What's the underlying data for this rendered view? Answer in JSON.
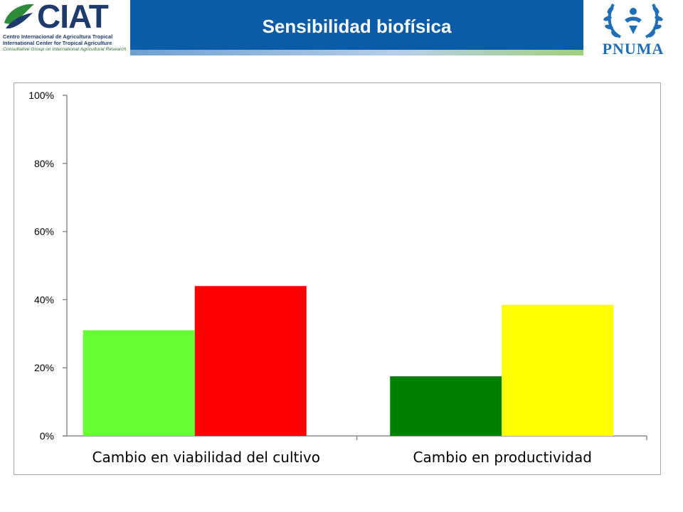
{
  "header": {
    "title": "Sensibilidad biofísica",
    "ciat": {
      "wordmark": "CIAT",
      "line1": "Centro Internacional de Agricultura Tropical",
      "line2": "International Center for Tropical Agriculture",
      "line3": "Consultative Group on International Agricultural Research"
    },
    "pnuma": {
      "wordmark": "PNUMA"
    }
  },
  "colors": {
    "title_bar": "#0a5ca8",
    "axis": "#8c8c8c"
  },
  "chart_data": {
    "type": "bar",
    "categories": [
      "Cambio en viabilidad del cultivo",
      "Cambio en productividad"
    ],
    "bars": [
      {
        "category": 0,
        "value": 31,
        "color": "#66ff33"
      },
      {
        "category": 0,
        "value": 44,
        "color": "#ff0000"
      },
      {
        "category": 1,
        "value": 17.5,
        "color": "#008000"
      },
      {
        "category": 1,
        "value": 38.5,
        "color": "#ffff00"
      }
    ],
    "ylim": [
      0,
      100
    ],
    "yticks": [
      0,
      20,
      40,
      60,
      80,
      100
    ],
    "ytick_labels": [
      "0%",
      "20%",
      "40%",
      "60%",
      "80%",
      "100%"
    ],
    "grid": false,
    "legend": "none"
  }
}
